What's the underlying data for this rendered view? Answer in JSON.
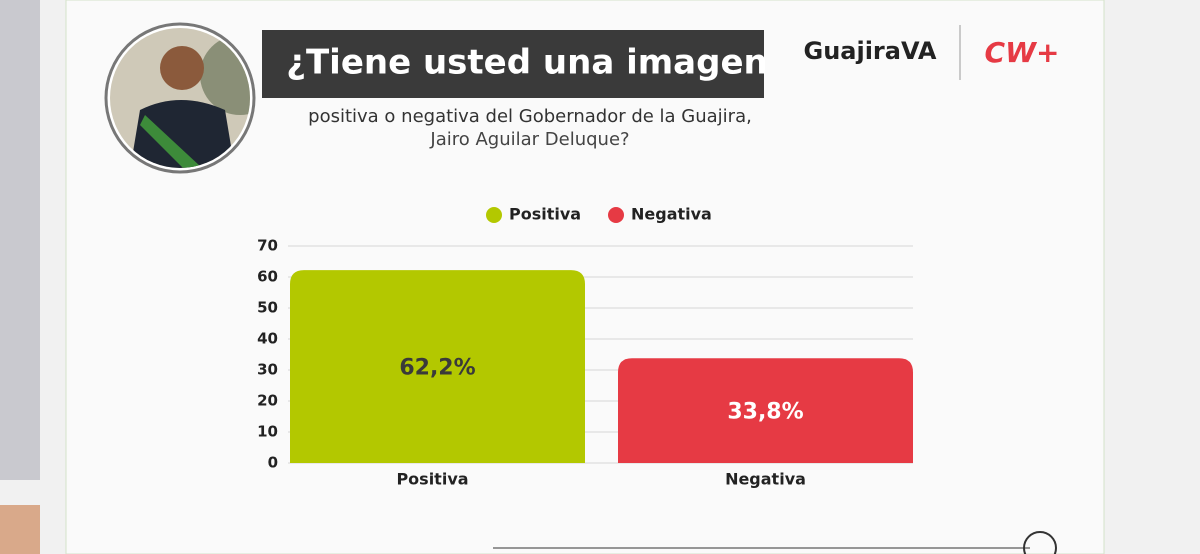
{
  "header": {
    "title": "¿Tiene usted una imagen",
    "subtitle_lines": [
      "positiva o negativa del Gobernador de la Guajira,",
      "Jairo Aguilar Deluque?"
    ]
  },
  "logos": {
    "primary": "GuajiraVA",
    "secondary": "CW+"
  },
  "chart_data": {
    "type": "bar",
    "categories": [
      "Positiva",
      "Negativa"
    ],
    "values": [
      62.2,
      33.8
    ],
    "value_labels": [
      "62,2%",
      "33,8%"
    ],
    "colors": [
      "#b3c800",
      "#e63a44"
    ],
    "label_colors": [
      "#3a3a3a",
      "#ffffff"
    ],
    "ylim": [
      0,
      70
    ],
    "yticks": [
      0,
      10,
      20,
      30,
      40,
      50,
      60,
      70
    ],
    "grid": true,
    "legend": "top"
  }
}
